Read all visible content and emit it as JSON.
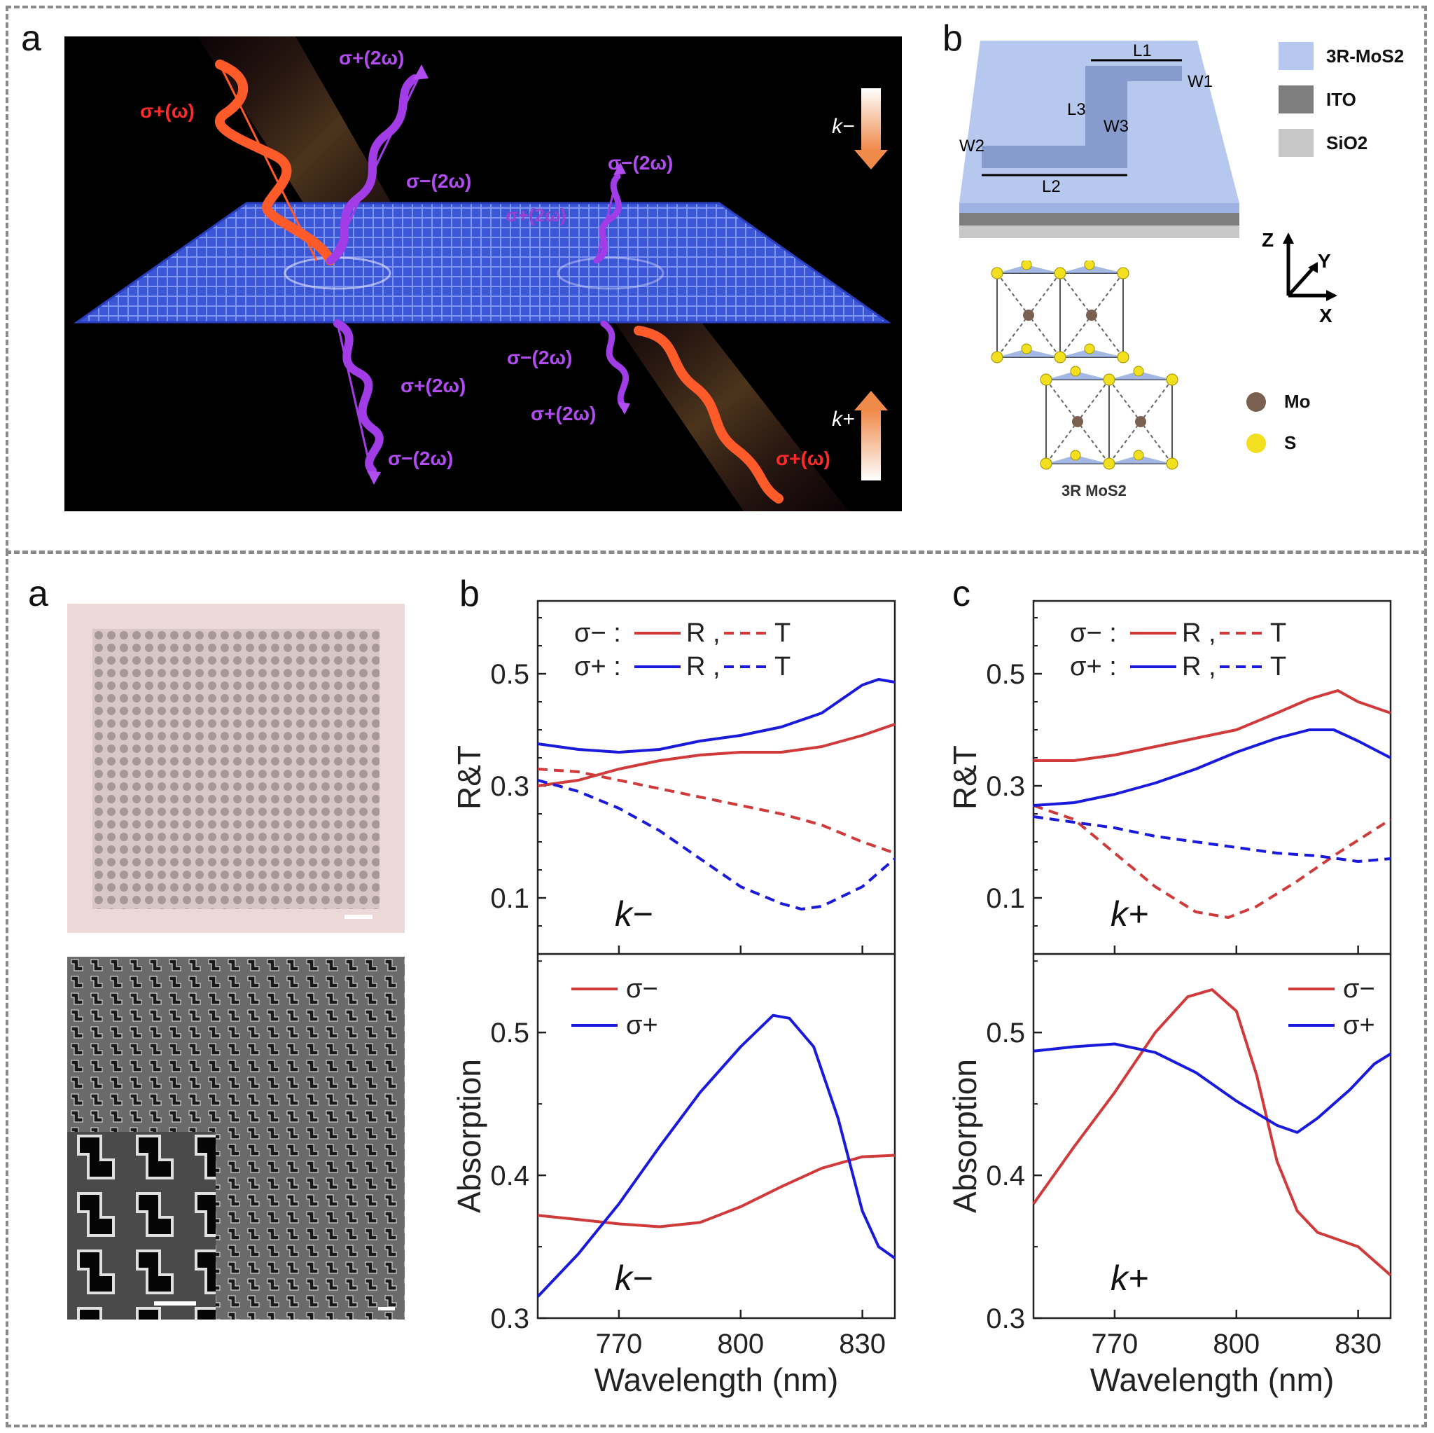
{
  "top": {
    "panel_a_letter": "a",
    "panel_b_letter": "b",
    "fig_a": {
      "labels": {
        "sigma_plus_omega_in": "σ+(ω)",
        "sigma_plus_2w_refl": "σ+(2ω)",
        "sigma_minus_2w_refl": "σ−(2ω)",
        "k_minus": "k−",
        "sigma_minus_2w_right": "σ−(2ω)",
        "sigma_plus_2w_right": "σ+(2ω)",
        "sigma_minus_2w_below": "σ−(2ω)",
        "sigma_plus_2w_below": "σ+(2ω)",
        "sigma_minus_2w_bottom": "σ−(2ω)",
        "sigma_minus_2w_right_below": "σ−(2ω)",
        "sigma_plus_2w_right_below": "σ+(2ω)",
        "k_plus": "k+",
        "sigma_plus_omega_out": "σ+(ω)"
      }
    },
    "fig_b": {
      "dims": {
        "L1": "L1",
        "W1": "W1",
        "L3": "L3",
        "W3": "W3",
        "W2": "W2",
        "L2": "L2"
      },
      "legend": [
        {
          "label": "3R-MoS2",
          "color": "#b7c8ee"
        },
        {
          "label": "ITO",
          "color": "#7e7e7e"
        },
        {
          "label": "SiO2",
          "color": "#c8c8c8"
        }
      ],
      "axes": {
        "z": "Z",
        "y": "Y",
        "x": "X"
      },
      "atoms": [
        {
          "label": "Mo",
          "color": "#7a6050"
        },
        {
          "label": "S",
          "color": "#f2e020"
        }
      ],
      "crystal_label": "3R MoS2"
    }
  },
  "bottom": {
    "panel_a_letter": "a",
    "panel_b_letter": "b",
    "panel_c_letter": "c",
    "colors": {
      "red": "#d03a3a",
      "blue": "#1a1adc"
    },
    "charts": [
      {
        "id": "b-top",
        "type": "line",
        "ylabel": "R&T",
        "ylim": [
          0.0,
          0.63
        ],
        "yticks": [
          "0.1",
          "0.3",
          "0.5"
        ],
        "ytick_values": [
          0.1,
          0.3,
          0.5
        ],
        "xlim": [
          750,
          838
        ],
        "annotation": "k−",
        "legend": [
          {
            "sym": "σ−",
            "r": "R",
            "t": "T"
          },
          {
            "sym": "σ+",
            "r": "R",
            "t": "T"
          }
        ],
        "series": [
          {
            "name": "σ− R",
            "style": "solid",
            "color": "red",
            "x": [
              750,
              760,
              770,
              780,
              790,
              800,
              810,
              820,
              830,
              838
            ],
            "y": [
              0.3,
              0.31,
              0.33,
              0.345,
              0.355,
              0.36,
              0.36,
              0.37,
              0.39,
              0.41
            ]
          },
          {
            "name": "σ− T",
            "style": "dashed",
            "color": "red",
            "x": [
              750,
              760,
              770,
              780,
              790,
              800,
              810,
              820,
              830,
              838
            ],
            "y": [
              0.33,
              0.325,
              0.31,
              0.295,
              0.28,
              0.265,
              0.25,
              0.23,
              0.2,
              0.18
            ]
          },
          {
            "name": "σ+ R",
            "style": "solid",
            "color": "blue",
            "x": [
              750,
              760,
              770,
              780,
              790,
              800,
              810,
              820,
              830,
              834,
              838
            ],
            "y": [
              0.375,
              0.365,
              0.36,
              0.365,
              0.38,
              0.39,
              0.405,
              0.43,
              0.48,
              0.49,
              0.485
            ]
          },
          {
            "name": "σ+ T",
            "style": "dashed",
            "color": "blue",
            "x": [
              750,
              760,
              770,
              780,
              790,
              800,
              810,
              815,
              820,
              830,
              838
            ],
            "y": [
              0.31,
              0.29,
              0.26,
              0.22,
              0.17,
              0.12,
              0.09,
              0.08,
              0.085,
              0.12,
              0.17
            ]
          }
        ]
      },
      {
        "id": "b-bottom",
        "type": "line",
        "ylabel": "Absorption",
        "ylim": [
          0.3,
          0.555
        ],
        "yticks": [
          "0.3",
          "0.4",
          "0.5"
        ],
        "ytick_values": [
          0.3,
          0.4,
          0.5
        ],
        "xlim": [
          750,
          838
        ],
        "xticks": [
          "770",
          "800",
          "830"
        ],
        "xtick_values": [
          770,
          800,
          830
        ],
        "xlabel": "Wavelength (nm)",
        "annotation": "k−",
        "legend": [
          {
            "sym": "σ−",
            "color": "red"
          },
          {
            "sym": "σ+",
            "color": "blue"
          }
        ],
        "series": [
          {
            "name": "σ−",
            "style": "solid",
            "color": "red",
            "x": [
              750,
              760,
              770,
              780,
              790,
              800,
              810,
              820,
              830,
              838
            ],
            "y": [
              0.372,
              0.369,
              0.366,
              0.364,
              0.367,
              0.378,
              0.392,
              0.405,
              0.413,
              0.414
            ]
          },
          {
            "name": "σ+",
            "style": "solid",
            "color": "blue",
            "x": [
              750,
              760,
              770,
              780,
              790,
              800,
              808,
              812,
              818,
              824,
              830,
              834,
              838
            ],
            "y": [
              0.315,
              0.345,
              0.38,
              0.42,
              0.458,
              0.49,
              0.512,
              0.51,
              0.49,
              0.44,
              0.375,
              0.35,
              0.342
            ]
          }
        ]
      },
      {
        "id": "c-top",
        "type": "line",
        "ylabel": "R&T",
        "ylim": [
          0.0,
          0.63
        ],
        "yticks": [
          "0.1",
          "0.3",
          "0.5"
        ],
        "ytick_values": [
          0.1,
          0.3,
          0.5
        ],
        "xlim": [
          750,
          838
        ],
        "annotation": "k+",
        "legend": [
          {
            "sym": "σ−",
            "r": "R",
            "t": "T"
          },
          {
            "sym": "σ+",
            "r": "R",
            "t": "T"
          }
        ],
        "series": [
          {
            "name": "σ− R",
            "style": "solid",
            "color": "red",
            "x": [
              750,
              760,
              770,
              780,
              790,
              800,
              810,
              818,
              825,
              830,
              838
            ],
            "y": [
              0.345,
              0.345,
              0.355,
              0.37,
              0.385,
              0.4,
              0.43,
              0.455,
              0.47,
              0.45,
              0.43
            ]
          },
          {
            "name": "σ− T",
            "style": "dashed",
            "color": "red",
            "x": [
              750,
              760,
              770,
              780,
              790,
              798,
              805,
              815,
              825,
              838
            ],
            "y": [
              0.265,
              0.24,
              0.18,
              0.12,
              0.075,
              0.065,
              0.085,
              0.13,
              0.18,
              0.24
            ]
          },
          {
            "name": "σ+ R",
            "style": "solid",
            "color": "blue",
            "x": [
              750,
              760,
              770,
              780,
              790,
              800,
              810,
              818,
              824,
              830,
              838
            ],
            "y": [
              0.265,
              0.27,
              0.285,
              0.305,
              0.33,
              0.36,
              0.385,
              0.4,
              0.4,
              0.38,
              0.35
            ]
          },
          {
            "name": "σ+ T",
            "style": "dashed",
            "color": "blue",
            "x": [
              750,
              760,
              770,
              780,
              790,
              800,
              810,
              820,
              830,
              838
            ],
            "y": [
              0.245,
              0.235,
              0.225,
              0.21,
              0.2,
              0.19,
              0.18,
              0.175,
              0.165,
              0.17
            ]
          }
        ]
      },
      {
        "id": "c-bottom",
        "type": "line",
        "ylabel": "Absorption",
        "ylim": [
          0.3,
          0.555
        ],
        "yticks": [
          "0.3",
          "0.4",
          "0.5"
        ],
        "ytick_values": [
          0.3,
          0.4,
          0.5
        ],
        "xlim": [
          750,
          838
        ],
        "xticks": [
          "770",
          "800",
          "830"
        ],
        "xtick_values": [
          770,
          800,
          830
        ],
        "xlabel": "Wavelength (nm)",
        "annotation": "k+",
        "legend": [
          {
            "sym": "σ−",
            "color": "red"
          },
          {
            "sym": "σ+",
            "color": "blue"
          }
        ],
        "series": [
          {
            "name": "σ−",
            "style": "solid",
            "color": "red",
            "x": [
              750,
              760,
              770,
              780,
              788,
              794,
              800,
              805,
              810,
              815,
              820,
              830,
              838
            ],
            "y": [
              0.38,
              0.42,
              0.458,
              0.5,
              0.525,
              0.53,
              0.515,
              0.47,
              0.41,
              0.375,
              0.36,
              0.35,
              0.33
            ]
          },
          {
            "name": "σ+",
            "style": "solid",
            "color": "blue",
            "x": [
              750,
              760,
              770,
              780,
              790,
              800,
              810,
              815,
              820,
              828,
              834,
              838
            ],
            "y": [
              0.487,
              0.49,
              0.492,
              0.486,
              0.472,
              0.452,
              0.435,
              0.43,
              0.44,
              0.46,
              0.478,
              0.485
            ]
          }
        ]
      }
    ]
  }
}
